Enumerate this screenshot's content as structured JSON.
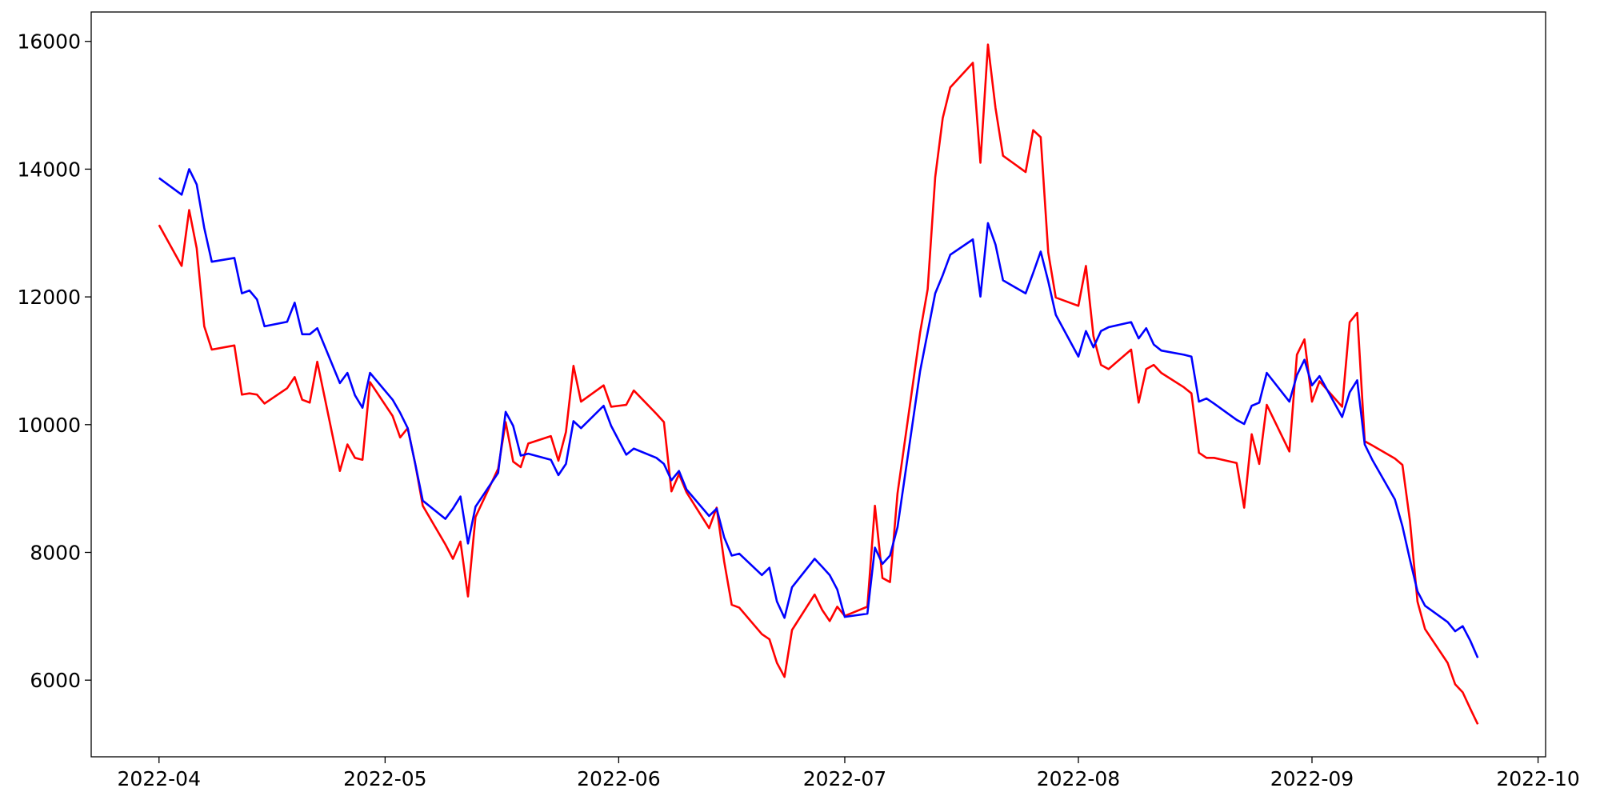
{
  "chart_data": {
    "type": "line",
    "x": [
      "2022-04-01",
      "2022-04-04",
      "2022-04-05",
      "2022-04-06",
      "2022-04-07",
      "2022-04-08",
      "2022-04-11",
      "2022-04-12",
      "2022-04-13",
      "2022-04-14",
      "2022-04-15",
      "2022-04-18",
      "2022-04-19",
      "2022-04-20",
      "2022-04-21",
      "2022-04-22",
      "2022-04-25",
      "2022-04-26",
      "2022-04-27",
      "2022-04-28",
      "2022-04-29",
      "2022-05-02",
      "2022-05-03",
      "2022-05-04",
      "2022-05-05",
      "2022-05-06",
      "2022-05-09",
      "2022-05-10",
      "2022-05-11",
      "2022-05-12",
      "2022-05-13",
      "2022-05-16",
      "2022-05-17",
      "2022-05-18",
      "2022-05-19",
      "2022-05-20",
      "2022-05-23",
      "2022-05-24",
      "2022-05-25",
      "2022-05-26",
      "2022-05-27",
      "2022-05-30",
      "2022-05-31",
      "2022-06-01",
      "2022-06-02",
      "2022-06-03",
      "2022-06-06",
      "2022-06-07",
      "2022-06-08",
      "2022-06-09",
      "2022-06-10",
      "2022-06-13",
      "2022-06-14",
      "2022-06-15",
      "2022-06-16",
      "2022-06-17",
      "2022-06-20",
      "2022-06-21",
      "2022-06-22",
      "2022-06-23",
      "2022-06-24",
      "2022-06-27",
      "2022-06-28",
      "2022-06-29",
      "2022-06-30",
      "2022-07-01",
      "2022-07-04",
      "2022-07-05",
      "2022-07-06",
      "2022-07-07",
      "2022-07-08",
      "2022-07-11",
      "2022-07-12",
      "2022-07-13",
      "2022-07-14",
      "2022-07-15",
      "2022-07-18",
      "2022-07-19",
      "2022-07-20",
      "2022-07-21",
      "2022-07-22",
      "2022-07-25",
      "2022-07-26",
      "2022-07-27",
      "2022-07-28",
      "2022-07-29",
      "2022-08-01",
      "2022-08-02",
      "2022-08-03",
      "2022-08-04",
      "2022-08-05",
      "2022-08-08",
      "2022-08-09",
      "2022-08-10",
      "2022-08-11",
      "2022-08-12",
      "2022-08-15",
      "2022-08-16",
      "2022-08-17",
      "2022-08-18",
      "2022-08-19",
      "2022-08-22",
      "2022-08-23",
      "2022-08-24",
      "2022-08-25",
      "2022-08-26",
      "2022-08-29",
      "2022-08-30",
      "2022-08-31",
      "2022-09-01",
      "2022-09-02",
      "2022-09-05",
      "2022-09-06",
      "2022-09-07",
      "2022-09-08",
      "2022-09-09",
      "2022-09-12",
      "2022-09-13",
      "2022-09-14",
      "2022-09-15",
      "2022-09-16",
      "2022-09-19",
      "2022-09-20",
      "2022-09-21",
      "2022-09-22",
      "2022-09-23"
    ],
    "series": [
      {
        "color": "#ff0000",
        "values": [
          13125,
          12485,
          13360,
          12760,
          11540,
          11175,
          11240,
          10470,
          10490,
          10470,
          10330,
          10570,
          10745,
          10390,
          10345,
          10985,
          9275,
          9690,
          9480,
          9450,
          10665,
          10135,
          9800,
          9945,
          9385,
          8730,
          8125,
          7900,
          8170,
          7310,
          8555,
          9310,
          10040,
          9420,
          9335,
          9705,
          9820,
          9435,
          9885,
          10920,
          10360,
          10615,
          10280,
          10295,
          10310,
          10535,
          10170,
          10040,
          8955,
          9225,
          8940,
          8380,
          8700,
          7855,
          7180,
          7135,
          6720,
          6640,
          6270,
          6050,
          6785,
          7340,
          7100,
          6925,
          7150,
          7005,
          7150,
          8730,
          7600,
          7535,
          8925,
          11445,
          12120,
          13875,
          14800,
          15280,
          15665,
          14100,
          15950,
          14960,
          14210,
          13955,
          14610,
          14500,
          12695,
          11990,
          11860,
          12485,
          11385,
          10935,
          10870,
          11175,
          10345,
          10870,
          10935,
          10810,
          10585,
          10490,
          9560,
          9480,
          9480,
          9400,
          8700,
          9850,
          9385,
          10310,
          9580,
          11095,
          11335,
          10360,
          10680,
          10280,
          11605,
          11750,
          9740,
          9675,
          9470,
          9370,
          8490,
          7230,
          6800,
          6270,
          5935,
          5810,
          5555,
          5310
        ]
      },
      {
        "color": "#0000ff",
        "values": [
          13860,
          13600,
          14000,
          13760,
          13080,
          12550,
          12610,
          12055,
          12100,
          11960,
          11540,
          11610,
          11910,
          11415,
          11415,
          11510,
          10650,
          10810,
          10460,
          10265,
          10810,
          10390,
          10185,
          9945,
          9385,
          8810,
          8525,
          8685,
          8875,
          8140,
          8715,
          9245,
          10200,
          9980,
          9515,
          9545,
          9450,
          9210,
          9385,
          10055,
          9945,
          10295,
          9980,
          9755,
          9530,
          9625,
          9480,
          9385,
          9130,
          9275,
          8985,
          8570,
          8685,
          8235,
          7950,
          7980,
          7645,
          7760,
          7230,
          6975,
          7455,
          7900,
          7775,
          7645,
          7420,
          6990,
          7040,
          8075,
          7820,
          7950,
          8395,
          10840,
          11445,
          12055,
          12340,
          12660,
          12900,
          12005,
          13155,
          12820,
          12260,
          12055,
          12375,
          12710,
          12245,
          11720,
          11065,
          11465,
          11210,
          11465,
          11525,
          11605,
          11350,
          11510,
          11255,
          11160,
          11095,
          11065,
          10360,
          10410,
          10330,
          10075,
          10010,
          10295,
          10345,
          10810,
          10360,
          10775,
          11015,
          10615,
          10760,
          10120,
          10505,
          10695,
          9690,
          9450,
          8830,
          8410,
          7885,
          7390,
          7165,
          6910,
          6765,
          6845,
          6620,
          6350
        ]
      }
    ],
    "xlim": [
      "2022-03-23",
      "2022-10-02"
    ],
    "xticks": [
      {
        "value": "2022-04-01",
        "label": "2022-04"
      },
      {
        "value": "2022-05-01",
        "label": "2022-05"
      },
      {
        "value": "2022-06-01",
        "label": "2022-06"
      },
      {
        "value": "2022-07-01",
        "label": "2022-07"
      },
      {
        "value": "2022-08-01",
        "label": "2022-08"
      },
      {
        "value": "2022-09-01",
        "label": "2022-09"
      },
      {
        "value": "2022-10-01",
        "label": "2022-10"
      }
    ],
    "ylim": [
      4800,
      16460
    ],
    "yticks": [
      6000,
      8000,
      10000,
      12000,
      14000,
      16000
    ],
    "grid": false
  }
}
